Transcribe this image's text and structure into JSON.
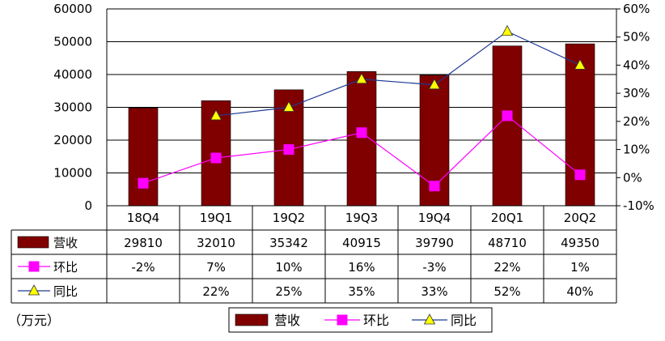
{
  "chart_data": {
    "type": "bar",
    "categories": [
      "18Q4",
      "19Q1",
      "19Q2",
      "19Q3",
      "19Q4",
      "20Q1",
      "20Q2"
    ],
    "left_axis": {
      "min": 0,
      "max": 60000,
      "ticks": [
        "0",
        "10000",
        "20000",
        "30000",
        "40000",
        "50000",
        "60000"
      ]
    },
    "right_axis": {
      "min": -10,
      "max": 60,
      "ticks": [
        "-10%",
        "0%",
        "10%",
        "20%",
        "30%",
        "40%",
        "50%",
        "60%"
      ]
    },
    "series": [
      {
        "name": "营收",
        "type": "bar",
        "axis": "left",
        "color": "#800000",
        "values": [
          29810,
          32010,
          35342,
          40915,
          39790,
          48710,
          49350
        ],
        "labels": [
          "29810",
          "32010",
          "35342",
          "40915",
          "39790",
          "48710",
          "49350"
        ]
      },
      {
        "name": "环比",
        "type": "line",
        "axis": "right",
        "color": "#FF00FF",
        "marker": "square",
        "values": [
          -2,
          7,
          10,
          16,
          -3,
          22,
          1
        ],
        "labels": [
          "-2%",
          "7%",
          "10%",
          "16%",
          "-3%",
          "22%",
          "1%"
        ]
      },
      {
        "name": "同比",
        "type": "line",
        "axis": "right",
        "color": "#1F3A93",
        "marker": "triangle",
        "values": [
          null,
          22,
          25,
          35,
          33,
          52,
          40
        ],
        "labels": [
          "",
          "22%",
          "25%",
          "35%",
          "33%",
          "52%",
          "40%"
        ]
      }
    ],
    "unit_note": "（万元）",
    "grid": true,
    "legend": "bottom-right"
  }
}
